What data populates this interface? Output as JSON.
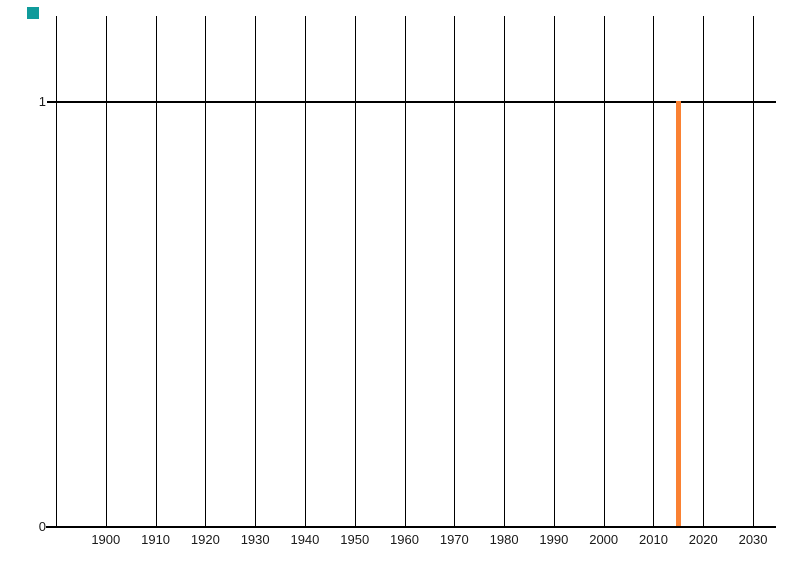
{
  "chart_data": {
    "type": "bar",
    "title": "",
    "x": [
      2015
    ],
    "values": [
      1
    ],
    "x_tick_labels": [
      "1900",
      "1910",
      "1920",
      "1930",
      "1940",
      "1950",
      "1960",
      "1970",
      "1980",
      "1990",
      "2000",
      "2010",
      "2020",
      "2030"
    ],
    "x_gridline_years": [
      1890,
      1900,
      1910,
      1920,
      1930,
      1940,
      1950,
      1960,
      1970,
      1980,
      1990,
      2000,
      2010,
      2020,
      2030
    ],
    "y_tick_labels": [
      "0",
      "1"
    ],
    "xlim": [
      1888,
      2034.5
    ],
    "ylim": [
      0,
      1.2
    ],
    "grid": "vertical decade gridlines, full plot height; horizontal lines only at y=0 and y=1",
    "legend": "none",
    "bar_color": "#fa8132",
    "axis_color": "#000000",
    "label_color": "#1a1a1a",
    "background": "#ffffff"
  },
  "corner_marker": {
    "color": "#0f9b9b"
  }
}
